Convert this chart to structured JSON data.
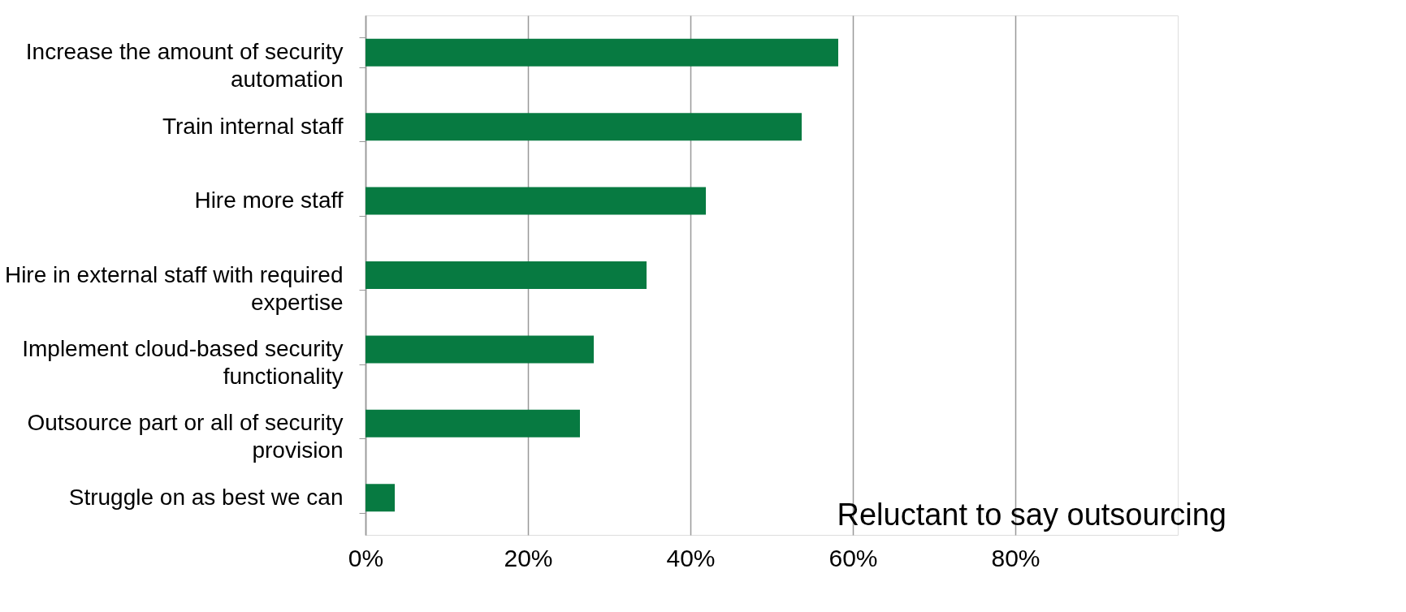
{
  "chart_data": {
    "type": "bar",
    "orientation": "horizontal",
    "categories": [
      "Increase the amount of security automation",
      "Train internal staff",
      "Hire more staff",
      "Hire in external staff with required expertise",
      "Implement cloud-based security functionality",
      "Outsource part or all of security provision",
      "Struggle on as best we can"
    ],
    "values": [
      58.2,
      53.7,
      41.9,
      34.6,
      28.1,
      26.4,
      3.6
    ],
    "color": "#077a41",
    "xlim": [
      0,
      100
    ],
    "xticks": [
      {
        "value": 0,
        "label": "0%"
      },
      {
        "value": 20,
        "label": "20%"
      },
      {
        "value": 40,
        "label": "40%"
      },
      {
        "value": 60,
        "label": "60%"
      },
      {
        "value": 80,
        "label": "80%"
      }
    ],
    "grid": "x",
    "annotations": [
      "Reluctant to say outsourcing"
    ]
  }
}
